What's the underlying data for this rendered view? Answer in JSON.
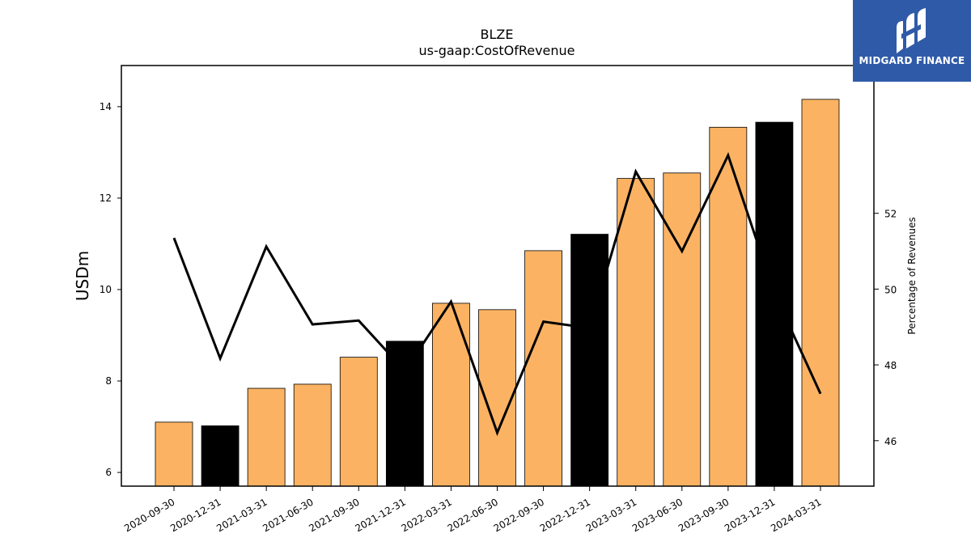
{
  "brand": {
    "name": "MIDGARD FINANCE",
    "icon": "midgard-logo-icon",
    "color": "#2f5aa8"
  },
  "chart_data": {
    "type": "bar",
    "title": "BLZE",
    "subtitle": "us-gaap:CostOfRevenue",
    "ylabel": "USDm",
    "ylabel_right": "Percentage of Revenues",
    "categories": [
      "2020-09-30",
      "2020-12-31",
      "2021-03-31",
      "2021-06-30",
      "2021-09-30",
      "2021-12-31",
      "2022-03-31",
      "2022-06-30",
      "2022-09-30",
      "2022-12-31",
      "2023-03-31",
      "2023-06-30",
      "2023-09-30",
      "2023-12-31",
      "2024-03-31"
    ],
    "series": [
      {
        "type": "bar",
        "axis": "left",
        "values": [
          7.1,
          7.02,
          7.84,
          7.93,
          8.52,
          8.87,
          9.7,
          9.56,
          10.85,
          11.21,
          12.43,
          12.55,
          13.55,
          13.66,
          14.16
        ],
        "colors": [
          "#fbb363",
          "#000000",
          "#fbb363",
          "#fbb363",
          "#fbb363",
          "#000000",
          "#fbb363",
          "#fbb363",
          "#fbb363",
          "#000000",
          "#fbb363",
          "#fbb363",
          "#fbb363",
          "#000000",
          "#fbb363"
        ]
      },
      {
        "type": "line",
        "axis": "right",
        "values": [
          51.35,
          48.17,
          51.12,
          49.07,
          49.17,
          47.84,
          49.67,
          46.21,
          49.14,
          48.97,
          53.1,
          51.0,
          53.53,
          49.9,
          47.24
        ],
        "color": "#000000"
      }
    ],
    "ylim": [
      5.7,
      14.9
    ],
    "yticks": [
      6,
      8,
      10,
      12,
      14
    ],
    "ylim_right": [
      44.8,
      55.9
    ],
    "yticks_right": [
      46,
      48,
      50,
      52
    ],
    "grid": false,
    "legend": "none"
  }
}
